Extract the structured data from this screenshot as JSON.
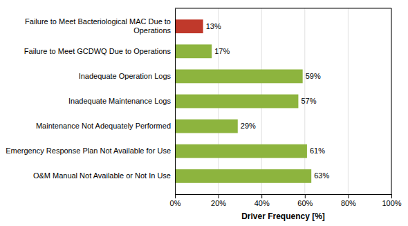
{
  "chart_data": {
    "type": "bar",
    "orientation": "horizontal",
    "categories": [
      "O&M Manual Not Available or Not In Use",
      "Emergency Response Plan Not Available for Use",
      "Maintenance Not Adequately Performed",
      "Inadequate Maintenance Logs",
      "Inadequate Operation Logs",
      "Failure to Meet GCDWQ Due to Operations",
      "Failure to Meet Bacteriological MAC Due to\nOperations"
    ],
    "values": [
      63,
      61,
      29,
      57,
      59,
      17,
      13
    ],
    "value_labels": [
      "63%",
      "61%",
      "29%",
      "57%",
      "59%",
      "17%",
      "13%"
    ],
    "data_labels": true,
    "colors": [
      "#8db43e",
      "#8db43e",
      "#8db43e",
      "#8db43e",
      "#8db43e",
      "#8db43e",
      "#c0392b"
    ],
    "xlabel": "Driver Frequency [%]",
    "xlim": [
      0,
      100
    ],
    "xticks": [
      {
        "value": 0,
        "label": "0%"
      },
      {
        "value": 20,
        "label": "20%"
      },
      {
        "value": 40,
        "label": "40%"
      },
      {
        "value": 60,
        "label": "60%"
      },
      {
        "value": 80,
        "label": "80%"
      },
      {
        "value": 100,
        "label": "100%"
      }
    ],
    "grid": true
  }
}
